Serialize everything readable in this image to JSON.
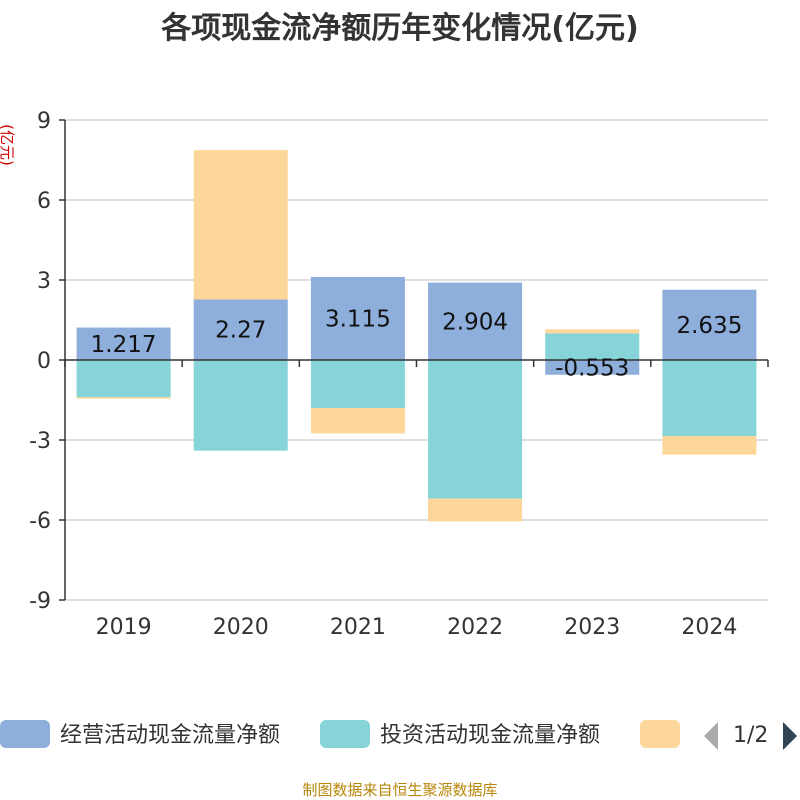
{
  "chart_data": {
    "type": "bar",
    "stacked": true,
    "title": "各项现金流净额历年变化情况(亿元)",
    "ylabel": "(亿元)",
    "xlabel": "",
    "categories": [
      "2019",
      "2020",
      "2021",
      "2022",
      "2023",
      "2024"
    ],
    "ylim": [
      -9,
      9
    ],
    "yticks": [
      "9",
      "6",
      "3",
      "0",
      "-3",
      "-6",
      "-9"
    ],
    "grid": true,
    "legend_position": "bottom",
    "series": [
      {
        "name": "经营活动现金流量净额",
        "color": "#8eaedb",
        "values": [
          1.217,
          2.27,
          3.115,
          2.904,
          -0.553,
          2.635
        ],
        "labels": [
          "1.217",
          "2.27",
          "3.115",
          "2.904",
          "-0.553",
          "2.635"
        ]
      },
      {
        "name": "投资活动现金流量净额",
        "color": "#86d4d8",
        "values": [
          -1.39,
          -3.4,
          -1.8,
          -5.2,
          1.0,
          -2.85
        ]
      },
      {
        "name": "",
        "color": "#fdd699",
        "values": [
          -0.06,
          5.6,
          -0.95,
          -0.85,
          0.15,
          -0.7
        ]
      }
    ],
    "legend_pager": "1/2"
  },
  "footer": {
    "source_text": "制图数据来自恒生聚源数据库"
  }
}
